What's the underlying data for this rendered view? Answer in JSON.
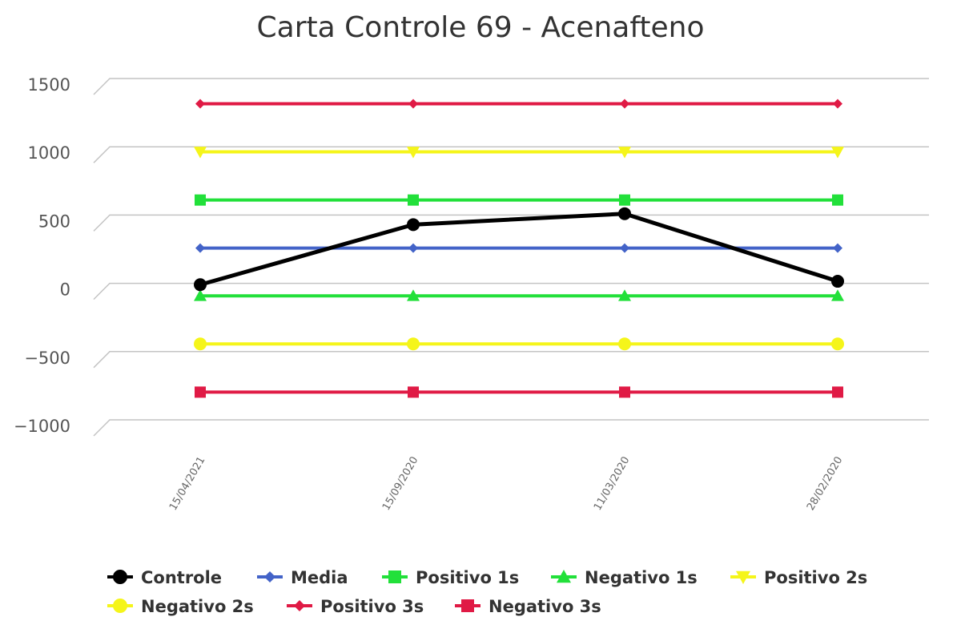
{
  "chart_data": {
    "type": "line",
    "title": "Carta Controle 69 - Acenafteno",
    "xlabel": "",
    "ylabel": "",
    "categories": [
      "15/04/2021",
      "15/09/2020",
      "11/03/2020",
      "28/02/2020"
    ],
    "ylim": [
      -1000,
      1500
    ],
    "yticks": [
      1500,
      1000,
      500,
      0,
      -500,
      -1000
    ],
    "ytick_labels": [
      "1500",
      "1000",
      "500",
      "0",
      "−500",
      "−1000"
    ],
    "grid": true,
    "legend_position": "bottom",
    "series": [
      {
        "name": "Controle",
        "values": [
          -10,
          430,
          510,
          15
        ],
        "color": "#000000",
        "marker": "circle"
      },
      {
        "name": "Media",
        "values": [
          258,
          258,
          258,
          258
        ],
        "color": "#4363c8",
        "marker": "diamond"
      },
      {
        "name": "Positivo 1s",
        "values": [
          610,
          610,
          610,
          610
        ],
        "color": "#22e03a",
        "marker": "square"
      },
      {
        "name": "Negativo 1s",
        "values": [
          -92,
          -92,
          -92,
          -92
        ],
        "color": "#22e03a",
        "marker": "triangle-up"
      },
      {
        "name": "Positivo 2s",
        "values": [
          963,
          963,
          963,
          963
        ],
        "color": "#f5f51a",
        "marker": "triangle-down"
      },
      {
        "name": "Negativo 2s",
        "values": [
          -444,
          -444,
          -444,
          -444
        ],
        "color": "#f5f51a",
        "marker": "circle"
      },
      {
        "name": "Positivo 3s",
        "values": [
          1315,
          1315,
          1315,
          1315
        ],
        "color": "#e01a45",
        "marker": "diamond"
      },
      {
        "name": "Negativo 3s",
        "values": [
          -797,
          -797,
          -797,
          -797
        ],
        "color": "#e01a45",
        "marker": "square"
      }
    ]
  }
}
